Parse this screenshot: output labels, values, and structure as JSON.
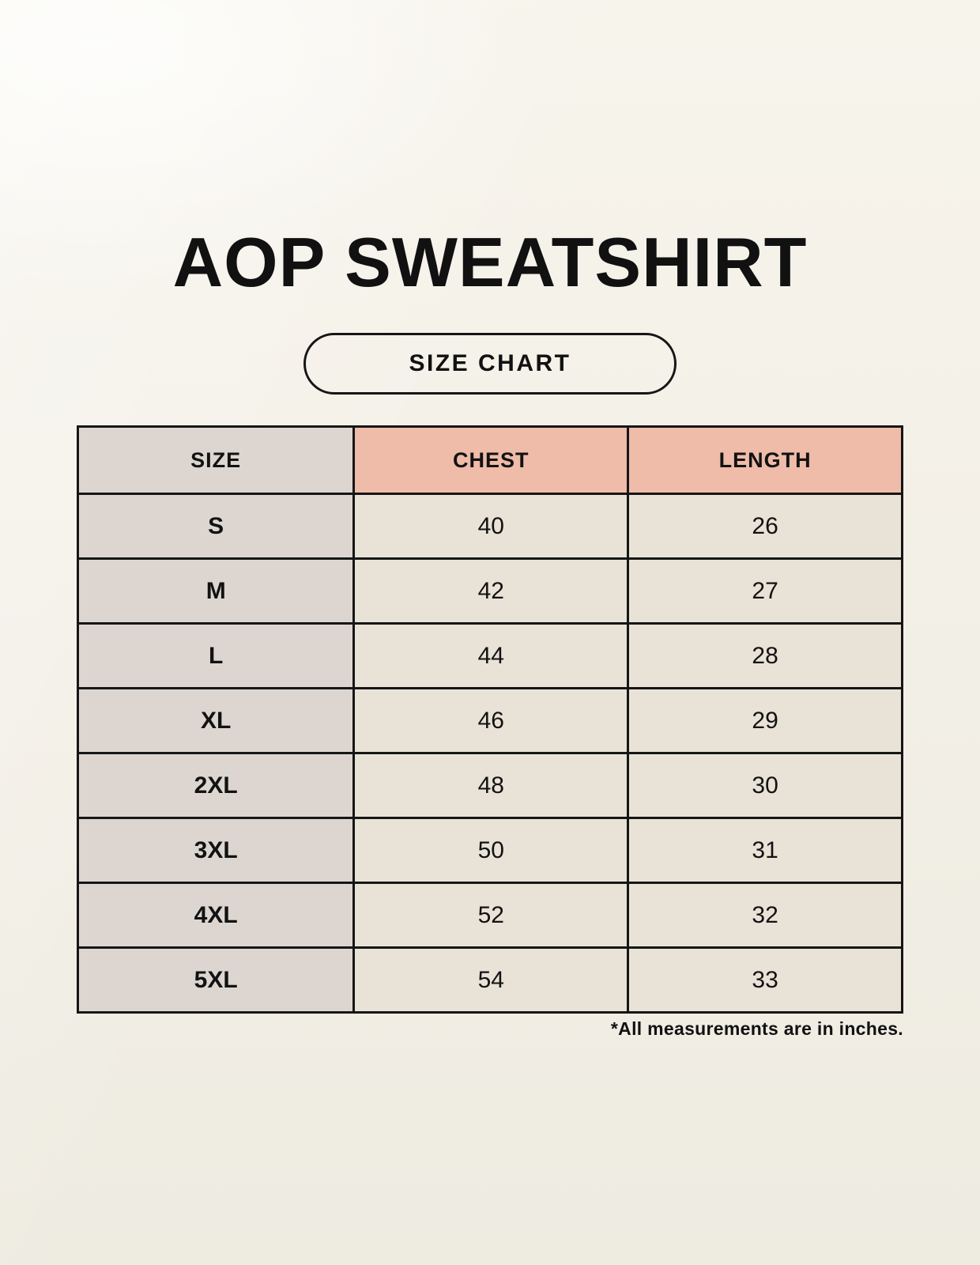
{
  "page": {
    "title": "AOP SWEATSHIRT",
    "badge_label": "SIZE CHART",
    "footnote": "*All measurements are in inches."
  },
  "chart_data": {
    "type": "table",
    "title": "AOP SWEATSHIRT",
    "subtitle": "SIZE CHART",
    "columns": [
      "SIZE",
      "CHEST",
      "LENGTH"
    ],
    "rows": [
      [
        "S",
        "40",
        "26"
      ],
      [
        "M",
        "42",
        "27"
      ],
      [
        "L",
        "44",
        "28"
      ],
      [
        "XL",
        "46",
        "29"
      ],
      [
        "2XL",
        "48",
        "30"
      ],
      [
        "3XL",
        "50",
        "31"
      ],
      [
        "4XL",
        "52",
        "32"
      ],
      [
        "5XL",
        "54",
        "33"
      ]
    ],
    "note": "*All measurements are in inches.",
    "units": "inches"
  },
  "colors": {
    "background": "#f3f0e7",
    "size_column_bg": "#ddd6d0",
    "accent_header_bg": "#eebca9",
    "value_cell_bg": "#e9e2d7",
    "border": "#161616",
    "text": "#121212"
  }
}
